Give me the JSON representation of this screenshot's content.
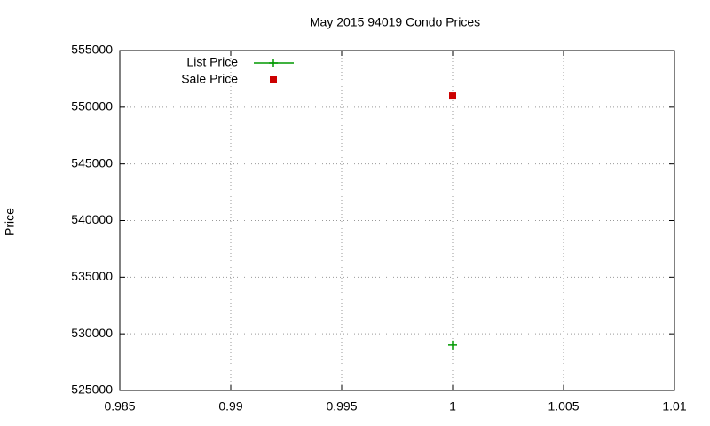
{
  "chart_data": {
    "type": "scatter",
    "title": "May 2015 94019 Condo Prices",
    "y_label": "Price",
    "series": [
      {
        "name": "List Price",
        "color": "#009900",
        "marker": "plus",
        "x": [
          1
        ],
        "values": [
          529000
        ]
      },
      {
        "name": "Sale Price",
        "color": "#cc0000",
        "marker": "square",
        "x": [
          1
        ],
        "values": [
          551000
        ]
      }
    ],
    "xlim": [
      0.985,
      1.01
    ],
    "xticks": [
      0.985,
      0.99,
      0.995,
      1,
      1.005,
      1.01
    ],
    "ylim": [
      525000,
      555000
    ],
    "yticks": [
      525000,
      530000,
      535000,
      540000,
      545000,
      550000,
      555000
    ],
    "grid": true,
    "legend": "top-left"
  }
}
